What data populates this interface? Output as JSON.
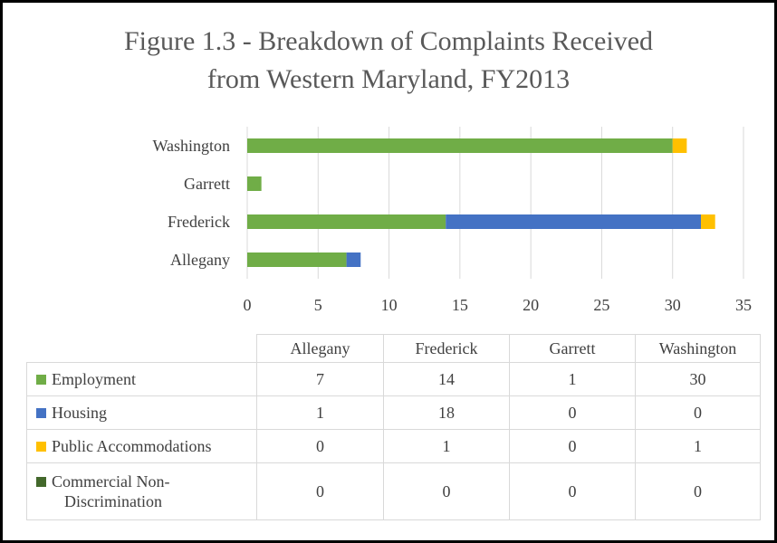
{
  "chart_data": {
    "type": "bar",
    "orientation": "horizontal",
    "stacked": true,
    "title": "Figure 1.3 - Breakdown of Complaints Received from Western Maryland, FY2013",
    "title_lines": [
      "Figure 1.3 - Breakdown of Complaints Received",
      "from Western Maryland, FY2013"
    ],
    "categories": [
      "Allegany",
      "Frederick",
      "Garrett",
      "Washington"
    ],
    "series": [
      {
        "name": "Employment",
        "color": "#70ad47",
        "values": [
          7,
          14,
          1,
          30
        ]
      },
      {
        "name": "Housing",
        "color": "#4472c4",
        "values": [
          1,
          18,
          0,
          0
        ]
      },
      {
        "name": "Public Accommodations",
        "color": "#ffc000",
        "values": [
          0,
          1,
          0,
          1
        ]
      },
      {
        "name": "Commercial Non-Discrimination",
        "color": "#43682b",
        "values": [
          0,
          0,
          0,
          0
        ]
      }
    ],
    "xlim": [
      0,
      35
    ],
    "x_ticks": [
      "0",
      "5",
      "10",
      "15",
      "20",
      "25",
      "30",
      "35"
    ],
    "grid": "vertical",
    "legend": "data-table"
  },
  "table": {
    "headers": [
      "Allegany",
      "Frederick",
      "Garrett",
      "Washington"
    ],
    "rows": [
      {
        "label": "Employment",
        "color": "#70ad47",
        "values": [
          "7",
          "14",
          "1",
          "30"
        ]
      },
      {
        "label": "Housing",
        "color": "#4472c4",
        "values": [
          "1",
          "18",
          "0",
          "0"
        ]
      },
      {
        "label": "Public Accommodations",
        "color": "#ffc000",
        "values": [
          "0",
          "1",
          "0",
          "1"
        ]
      },
      {
        "label": "Commercial Non-Discrimination",
        "color": "#43682b",
        "values": [
          "0",
          "0",
          "0",
          "0"
        ]
      }
    ]
  }
}
